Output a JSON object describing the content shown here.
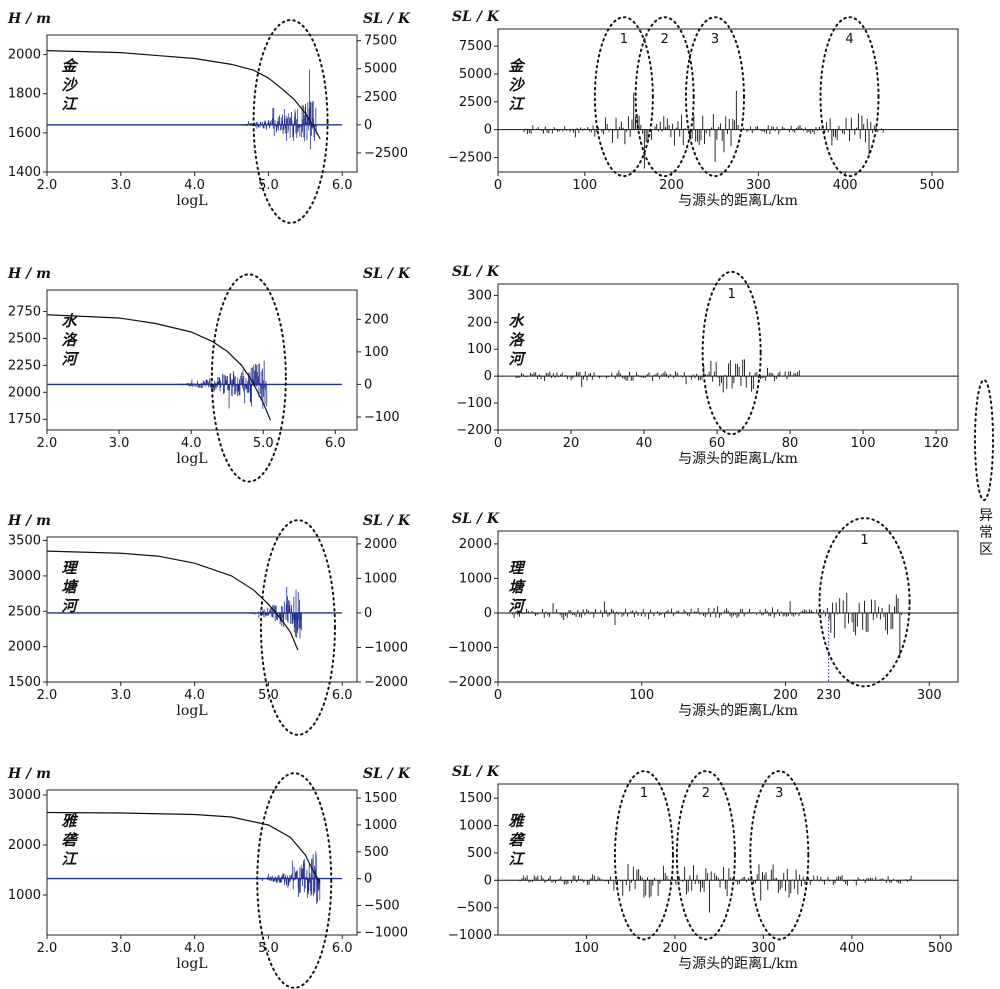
{
  "legend": {
    "label": "异常区"
  },
  "chart_data": [
    {
      "type": "line",
      "river": "金沙江",
      "left": {
        "xlabel": "logL",
        "ylabel": "H/m",
        "y2label": "SL/K",
        "xlim": [
          2.0,
          6.2
        ],
        "xticks": [
          "2.0",
          "3.0",
          "4.0",
          "5.0",
          "6.0"
        ],
        "ylim": [
          1400,
          2100
        ],
        "yticks": [
          "1400",
          "1600",
          "1800",
          "2000"
        ],
        "y2lim": [
          -4200,
          8000
        ],
        "y2ticks": [
          "−2500",
          "0",
          "2500",
          "5000",
          "7500"
        ],
        "profile": [
          [
            2.0,
            2020
          ],
          [
            3.0,
            2010
          ],
          [
            3.5,
            1995
          ],
          [
            4.0,
            1980
          ],
          [
            4.5,
            1950
          ],
          [
            4.8,
            1920
          ],
          [
            5.0,
            1880
          ],
          [
            5.2,
            1820
          ],
          [
            5.35,
            1770
          ],
          [
            5.5,
            1700
          ],
          [
            5.6,
            1640
          ],
          [
            5.7,
            1570
          ]
        ],
        "sl_range": [
          4.4,
          5.65
        ],
        "anomaly_x": [
          5.3
        ]
      },
      "right": {
        "xlabel": "与源头的距离L/km",
        "ylabel": "SL/K",
        "xlim": [
          0,
          530
        ],
        "xticks": [
          "0",
          "100",
          "200",
          "300",
          "400",
          "500"
        ],
        "ylim": [
          -3800,
          8500
        ],
        "yticks": [
          "−2500",
          "0",
          "2500",
          "5000",
          "7500"
        ],
        "sl_range": [
          30,
          445
        ],
        "anomalies": [
          {
            "label": "1",
            "x": 145
          },
          {
            "label": "2",
            "x": 192
          },
          {
            "label": "3",
            "x": 250
          },
          {
            "label": "4",
            "x": 405
          }
        ]
      }
    },
    {
      "type": "line",
      "river": "水洛河",
      "left": {
        "xlabel": "logL",
        "ylabel": "H/m",
        "y2label": "SL/K",
        "xlim": [
          2.0,
          6.3
        ],
        "xticks": [
          "2.0",
          "3.0",
          "4.0",
          "5.0",
          "6.0"
        ],
        "ylim": [
          1650,
          2950
        ],
        "yticks": [
          "1750",
          "2000",
          "2250",
          "2500",
          "2750"
        ],
        "y2lim": [
          -140,
          290
        ],
        "y2ticks": [
          "−100",
          "0",
          "100",
          "200"
        ],
        "profile": [
          [
            2.0,
            2720
          ],
          [
            3.0,
            2690
          ],
          [
            3.5,
            2640
          ],
          [
            4.0,
            2560
          ],
          [
            4.3,
            2470
          ],
          [
            4.5,
            2380
          ],
          [
            4.7,
            2250
          ],
          [
            4.85,
            2100
          ],
          [
            5.0,
            1900
          ],
          [
            5.1,
            1740
          ]
        ],
        "sl_range": [
          3.5,
          5.05
        ],
        "anomaly_x": [
          4.8
        ]
      },
      "right": {
        "xlabel": "与源头的距离L/km",
        "ylabel": "SL/K",
        "xlim": [
          0,
          126
        ],
        "xticks": [
          "0",
          "20",
          "40",
          "60",
          "80",
          "100",
          "120"
        ],
        "ylim": [
          -200,
          320
        ],
        "yticks": [
          "−200",
          "−100",
          "0",
          "100",
          "200",
          "300"
        ],
        "sl_range": [
          5,
          83
        ],
        "anomalies": [
          {
            "label": "1",
            "x": 64
          }
        ]
      }
    },
    {
      "type": "line",
      "river": "理塘河",
      "left": {
        "xlabel": "logL",
        "ylabel": "H/m",
        "y2label": "SL/K",
        "xlim": [
          2.0,
          6.2
        ],
        "xticks": [
          "2.0",
          "3.0",
          "4.0",
          "5.0",
          "6.0"
        ],
        "ylim": [
          1500,
          3550
        ],
        "yticks": [
          "1500",
          "2000",
          "2500",
          "3000",
          "3500"
        ],
        "y2lim": [
          -2000,
          2200
        ],
        "y2ticks": [
          "−2000",
          "−1000",
          "0",
          "1000",
          "2000"
        ],
        "profile": [
          [
            2.0,
            3350
          ],
          [
            3.0,
            3320
          ],
          [
            3.5,
            3280
          ],
          [
            4.0,
            3180
          ],
          [
            4.5,
            3000
          ],
          [
            4.8,
            2800
          ],
          [
            5.0,
            2600
          ],
          [
            5.2,
            2350
          ],
          [
            5.3,
            2200
          ],
          [
            5.4,
            1950
          ]
        ],
        "sl_range": [
          4.6,
          5.45
        ],
        "anomaly_x": [
          5.4
        ]
      },
      "right": {
        "xlabel": "与源头的距离L/km",
        "ylabel": "SL/K",
        "xlim": [
          0,
          320
        ],
        "xticks": [
          "0",
          "100",
          "200",
          "300"
        ],
        "ylim": [
          -2000,
          2200
        ],
        "yticks": [
          "−2000",
          "−1000",
          "0",
          "1000",
          "2000"
        ],
        "sl_range": [
          10,
          282
        ],
        "marker": {
          "label": "230",
          "x": 230
        },
        "anomalies": [
          {
            "label": "1",
            "x": 255
          }
        ]
      }
    },
    {
      "type": "line",
      "river": "雅砻江",
      "left": {
        "xlabel": "logL",
        "ylabel": "H/m",
        "y2label": "SL/K",
        "xlim": [
          2.0,
          6.2
        ],
        "xticks": [
          "2.0",
          "3.0",
          "4.0",
          "5.0",
          "6.0"
        ],
        "ylim": [
          200,
          3100
        ],
        "yticks": [
          "1000",
          "2000",
          "3000"
        ],
        "y2lim": [
          -1050,
          1650
        ],
        "y2ticks": [
          "−1000",
          "−500",
          "0",
          "500",
          "1000",
          "1500"
        ],
        "profile": [
          [
            2.0,
            2650
          ],
          [
            3.0,
            2640
          ],
          [
            4.0,
            2610
          ],
          [
            4.5,
            2560
          ],
          [
            5.0,
            2400
          ],
          [
            5.3,
            2150
          ],
          [
            5.5,
            1800
          ],
          [
            5.6,
            1500
          ],
          [
            5.7,
            1250
          ]
        ],
        "sl_range": [
          4.7,
          5.7
        ],
        "anomaly_x": [
          5.35
        ]
      },
      "right": {
        "xlabel": "与源头的距离L/km",
        "ylabel": "SL/K",
        "xlim": [
          0,
          520
        ],
        "xticks": [
          "100",
          "200",
          "300",
          "400",
          "500"
        ],
        "ylim": [
          -1000,
          1650
        ],
        "yticks": [
          "−1000",
          "−500",
          "0",
          "500",
          "1000",
          "1500"
        ],
        "sl_range": [
          25,
          470
        ],
        "anomalies": [
          {
            "label": "1",
            "x": 165
          },
          {
            "label": "2",
            "x": 235
          },
          {
            "label": "3",
            "x": 318
          }
        ]
      }
    }
  ]
}
